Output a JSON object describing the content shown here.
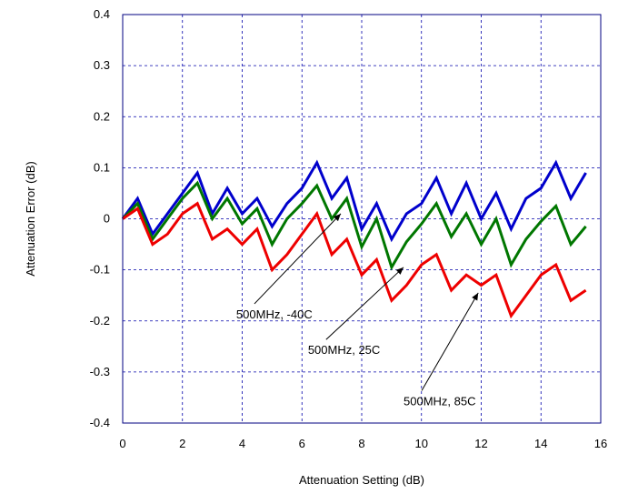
{
  "chart_data": {
    "type": "line",
    "title": "",
    "xlabel": "Attenuation Setting (dB)",
    "ylabel": "Attenuation Error (dB)",
    "xlim": [
      0,
      16
    ],
    "ylim": [
      -0.4,
      0.4
    ],
    "x_ticks": [
      0,
      2,
      4,
      6,
      8,
      10,
      12,
      14,
      16
    ],
    "y_ticks": [
      -0.4,
      -0.3,
      -0.2,
      -0.1,
      0,
      0.1,
      0.2,
      0.3,
      0.4
    ],
    "x_tick_labels": [
      "0",
      "2",
      "4",
      "6",
      "8",
      "10",
      "12",
      "14",
      "16"
    ],
    "y_tick_labels": [
      "-0.4",
      "-0.3",
      "-0.2",
      "-0.1",
      "0",
      "0.1",
      "0.2",
      "0.3",
      "0.4"
    ],
    "grid": true,
    "x": [
      0,
      0.5,
      1,
      1.5,
      2,
      2.5,
      3,
      3.5,
      4,
      4.5,
      5,
      5.5,
      6,
      6.5,
      7,
      7.5,
      8,
      8.5,
      9,
      9.5,
      10,
      10.5,
      11,
      11.5,
      12,
      12.5,
      13,
      13.5,
      14,
      14.5,
      15,
      15.5
    ],
    "series": [
      {
        "color": "#0000cc",
        "values": [
          0,
          0.04,
          -0.03,
          0.01,
          0.05,
          0.09,
          0.01,
          0.06,
          0.01,
          0.04,
          -0.015,
          0.03,
          0.06,
          0.11,
          0.04,
          0.08,
          -0.02,
          0.03,
          -0.04,
          0.01,
          0.03,
          0.08,
          0.01,
          0.07,
          0.0,
          0.05,
          -0.02,
          0.04,
          0.06,
          0.11,
          0.04,
          0.09
        ]
      },
      {
        "color": "#007700",
        "values": [
          0,
          0.03,
          -0.04,
          0.0,
          0.04,
          0.07,
          0.0,
          0.04,
          -0.01,
          0.02,
          -0.05,
          0.0,
          0.03,
          0.065,
          0.0,
          0.04,
          -0.055,
          0.0,
          -0.095,
          -0.045,
          -0.01,
          0.03,
          -0.035,
          0.01,
          -0.05,
          0.0,
          -0.09,
          -0.04,
          -0.005,
          0.025,
          -0.05,
          -0.015
        ]
      },
      {
        "color": "#ee0000",
        "values": [
          0,
          0.02,
          -0.05,
          -0.03,
          0.01,
          0.03,
          -0.04,
          -0.02,
          -0.05,
          -0.02,
          -0.1,
          -0.07,
          -0.03,
          0.01,
          -0.07,
          -0.04,
          -0.11,
          -0.08,
          -0.16,
          -0.13,
          -0.09,
          -0.07,
          -0.14,
          -0.11,
          -0.13,
          -0.11,
          -0.19,
          -0.15,
          -0.11,
          -0.09,
          -0.16,
          -0.14
        ]
      }
    ],
    "annotations": [
      {
        "text": "500MHz, -40C",
        "tip_x": 7.3,
        "tip_y": 0.01,
        "text_x": 3.8,
        "text_y": -0.195
      },
      {
        "text": "500MHz, 25C",
        "tip_x": 9.4,
        "tip_y": -0.095,
        "text_x": 6.2,
        "text_y": -0.265
      },
      {
        "text": "500MHz, 85C",
        "tip_x": 11.9,
        "tip_y": -0.145,
        "text_x": 9.4,
        "text_y": -0.365
      }
    ]
  }
}
